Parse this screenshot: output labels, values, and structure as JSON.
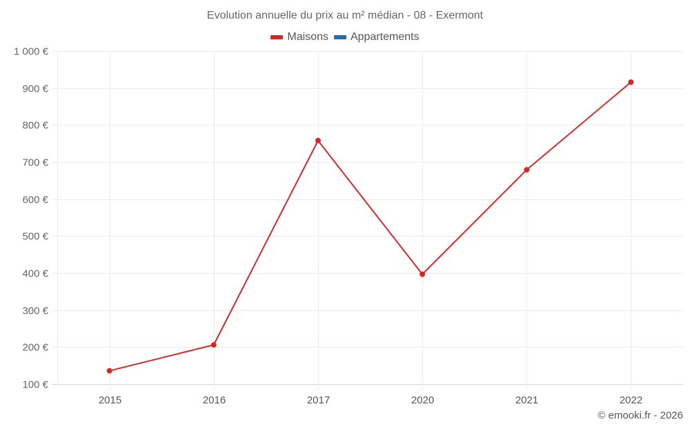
{
  "title": "Evolution annuelle du prix au m² médian - 08 - Exermont",
  "legend": [
    {
      "label": "Maisons",
      "color": "#d62728"
    },
    {
      "label": "Appartements",
      "color": "#1f6fa8"
    }
  ],
  "credit": "© emooki.fr - 2026",
  "chart_data": {
    "type": "line",
    "title": "Evolution annuelle du prix au m² médian - 08 - Exermont",
    "xlabel": "",
    "ylabel": "",
    "categories": [
      "2015",
      "2016",
      "2017",
      "2020",
      "2021",
      "2022"
    ],
    "series": [
      {
        "name": "Maisons",
        "color": "#d62728",
        "values": [
          136,
          206,
          758,
          397,
          679,
          916
        ]
      },
      {
        "name": "Appartements",
        "color": "#1f6fa8",
        "values": []
      }
    ],
    "ylim": [
      100,
      1000
    ],
    "yticks": [
      100,
      200,
      300,
      400,
      500,
      600,
      700,
      800,
      900,
      1000
    ],
    "ytick_labels": [
      "100 €",
      "200 €",
      "300 €",
      "400 €",
      "500 €",
      "600 €",
      "700 €",
      "800 €",
      "900 €",
      "1 000 €"
    ],
    "grid": true,
    "legend_position": "top"
  }
}
